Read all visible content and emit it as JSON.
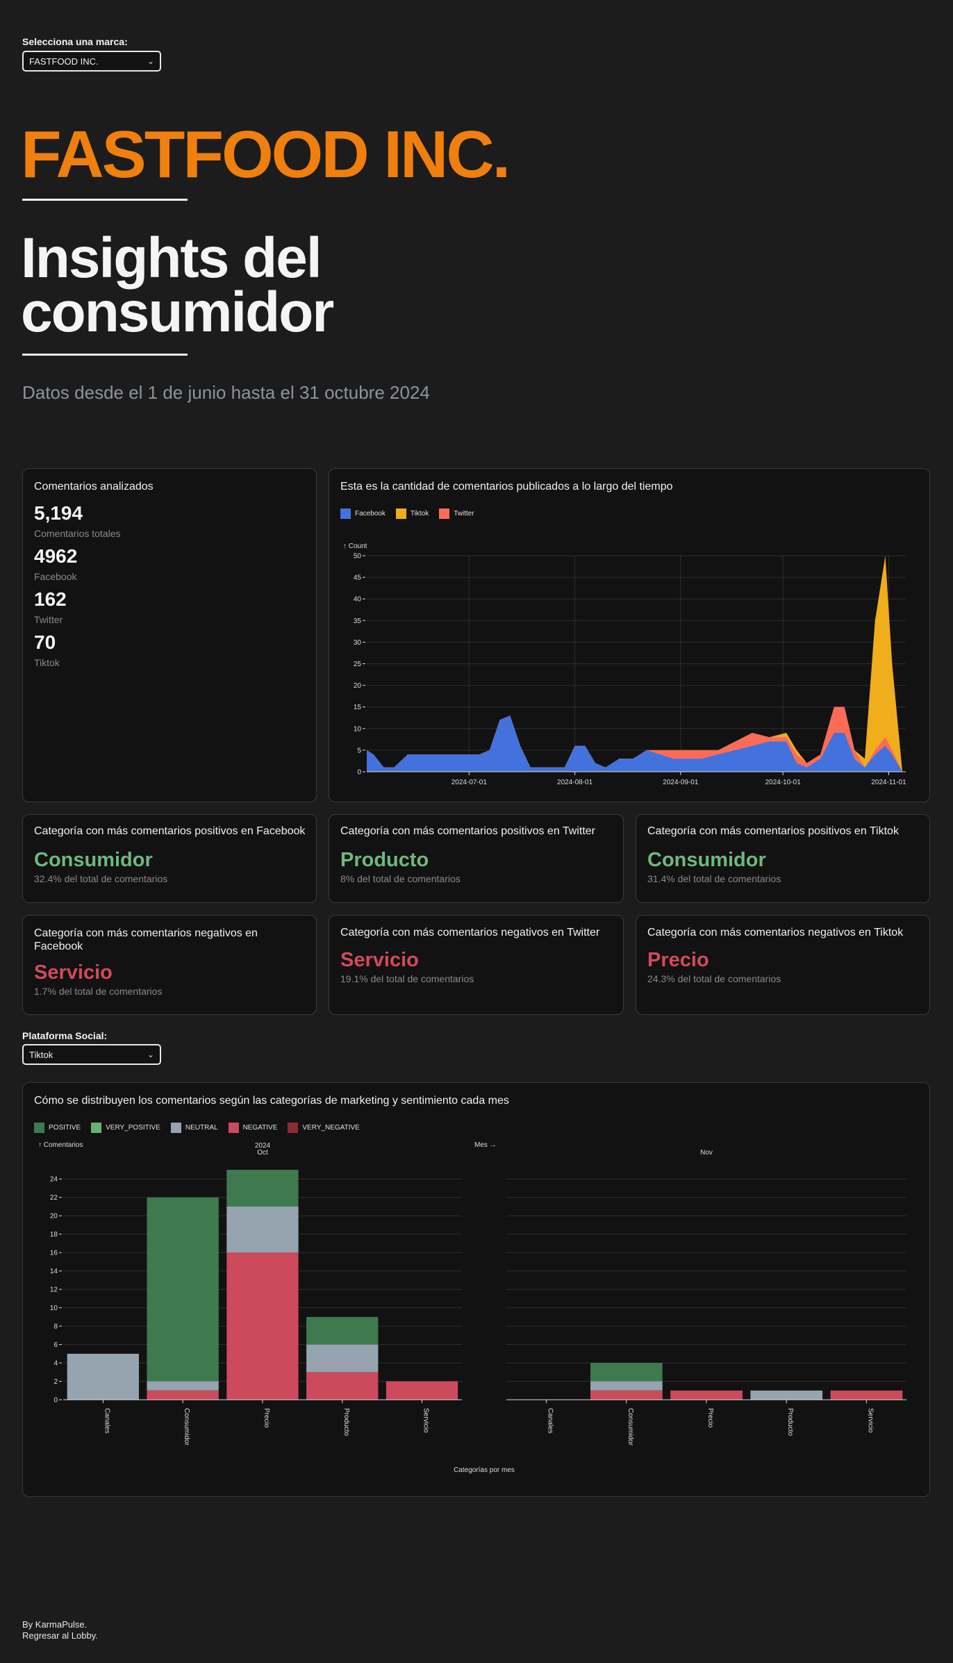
{
  "brand_selector": {
    "label": "Selecciona una marca:",
    "value": "FASTFOOD INC."
  },
  "brand": {
    "title": "FASTFOOD INC."
  },
  "header": {
    "title_line1": "Insights del",
    "title_line2": "consumidor",
    "date_range": "Datos desde el 1 de junio hasta el 31 octubre 2024"
  },
  "summary": {
    "title": "Comentarios analizados",
    "stats": [
      {
        "value": "5,194",
        "caption": "Comentarios totales"
      },
      {
        "value": "4962",
        "caption": "Facebook"
      },
      {
        "value": "162",
        "caption": "Twitter"
      },
      {
        "value": "70",
        "caption": "Tiktok"
      }
    ]
  },
  "timeline": {
    "title": "Esta es la cantidad de comentarios publicados a lo largo del tiempo",
    "legend": [
      {
        "label": "Facebook",
        "color": "#4472dc"
      },
      {
        "label": "Tiktok",
        "color": "#f0ad1c"
      },
      {
        "label": "Twitter",
        "color": "#fb6b56"
      }
    ]
  },
  "positive_cards": [
    {
      "title": "Categoría con más comentarios positivos en Facebook",
      "category": "Consumidor",
      "caption": "32.4% del total de comentarios"
    },
    {
      "title": "Categoría con más comentarios positivos en Twitter",
      "category": "Producto",
      "caption": "8% del total de comentarios"
    },
    {
      "title": "Categoría con más comentarios positivos en Tiktok",
      "category": "Consumidor",
      "caption": "31.4% del total de comentarios"
    }
  ],
  "negative_cards": [
    {
      "title": "Categoría con más comentarios negativos en Facebook",
      "category": "Servicio",
      "caption": "1.7% del total de comentarios"
    },
    {
      "title": "Categoría con más comentarios negativos en Twitter",
      "category": "Servicio",
      "caption": "19.1% del total de comentarios"
    },
    {
      "title": "Categoría con más comentarios negativos en Tiktok",
      "category": "Precio",
      "caption": "24.3% del total de comentarios"
    }
  ],
  "platform_selector": {
    "label": "Plataforma Social:",
    "value": "Tiktok"
  },
  "distribution": {
    "title": "Cómo se distribuyen los comentarios según las categorías de marketing y sentimiento cada mes",
    "legend": [
      {
        "label": "POSITIVE",
        "color": "#3f7a4f"
      },
      {
        "label": "VERY_POSITIVE",
        "color": "#66b36f"
      },
      {
        "label": "NEUTRAL",
        "color": "#95a4ae"
      },
      {
        "label": "NEGATIVE",
        "color": "#cc4a5c"
      },
      {
        "label": "VERY_NEGATIVE",
        "color": "#8b2b32"
      }
    ]
  },
  "footer": {
    "line1": "By KarmaPulse.",
    "line2": "Regresar al Lobby."
  },
  "chart_data": [
    {
      "type": "area",
      "title": "Esta es la cantidad de comentarios publicados a lo largo del tiempo",
      "ylabel": "↑ Count",
      "xlabel": "",
      "ylim": [
        0,
        50
      ],
      "y_ticks": [
        0,
        5,
        10,
        15,
        20,
        25,
        30,
        35,
        40,
        45,
        50
      ],
      "x_tick_labels": [
        "2024-07-01",
        "2024-08-01",
        "2024-09-01",
        "2024-10-01",
        "2024-11-01"
      ],
      "x_ticks": [
        "2024-07-01",
        "2024-08-01",
        "2024-09-01",
        "2024-10-01",
        "2024-11-01"
      ],
      "xlim": [
        "2024-06-01",
        "2024-11-06"
      ],
      "grid": true,
      "legend_position": "top-left",
      "stacked": true,
      "series": [
        {
          "name": "Facebook",
          "color": "#4472dc",
          "points": [
            [
              "2024-06-01",
              5
            ],
            [
              "2024-06-03",
              4
            ],
            [
              "2024-06-06",
              1
            ],
            [
              "2024-06-09",
              1
            ],
            [
              "2024-06-13",
              4
            ],
            [
              "2024-06-20",
              4
            ],
            [
              "2024-06-27",
              4
            ],
            [
              "2024-07-04",
              4
            ],
            [
              "2024-07-07",
              5
            ],
            [
              "2024-07-10",
              12
            ],
            [
              "2024-07-13",
              13
            ],
            [
              "2024-07-16",
              6
            ],
            [
              "2024-07-19",
              1
            ],
            [
              "2024-07-25",
              1
            ],
            [
              "2024-07-29",
              1
            ],
            [
              "2024-08-01",
              6
            ],
            [
              "2024-08-04",
              6
            ],
            [
              "2024-08-07",
              2
            ],
            [
              "2024-08-10",
              1
            ],
            [
              "2024-08-14",
              3
            ],
            [
              "2024-08-18",
              3
            ],
            [
              "2024-08-22",
              5
            ],
            [
              "2024-08-26",
              4
            ],
            [
              "2024-08-30",
              3
            ],
            [
              "2024-09-03",
              3
            ],
            [
              "2024-09-07",
              3
            ],
            [
              "2024-09-12",
              4
            ],
            [
              "2024-09-17",
              5
            ],
            [
              "2024-09-22",
              6
            ],
            [
              "2024-09-27",
              7
            ],
            [
              "2024-10-02",
              7
            ],
            [
              "2024-10-05",
              2
            ],
            [
              "2024-10-08",
              1
            ],
            [
              "2024-10-12",
              3
            ],
            [
              "2024-10-16",
              9
            ],
            [
              "2024-10-19",
              9
            ],
            [
              "2024-10-22",
              3
            ],
            [
              "2024-10-25",
              1
            ],
            [
              "2024-10-28",
              4
            ],
            [
              "2024-10-31",
              6
            ],
            [
              "2024-11-02",
              4
            ],
            [
              "2024-11-05",
              0
            ]
          ]
        },
        {
          "name": "Twitter",
          "color": "#fb6b56",
          "points": [
            [
              "2024-06-01",
              0
            ],
            [
              "2024-08-18",
              0
            ],
            [
              "2024-08-22",
              0
            ],
            [
              "2024-08-26",
              1
            ],
            [
              "2024-08-30",
              2
            ],
            [
              "2024-09-03",
              2
            ],
            [
              "2024-09-07",
              2
            ],
            [
              "2024-09-12",
              1
            ],
            [
              "2024-09-17",
              2
            ],
            [
              "2024-09-22",
              3
            ],
            [
              "2024-09-27",
              1
            ],
            [
              "2024-10-02",
              1
            ],
            [
              "2024-10-05",
              2
            ],
            [
              "2024-10-08",
              1
            ],
            [
              "2024-10-12",
              1
            ],
            [
              "2024-10-16",
              6
            ],
            [
              "2024-10-19",
              6
            ],
            [
              "2024-10-22",
              2
            ],
            [
              "2024-10-25",
              0
            ],
            [
              "2024-10-28",
              1
            ],
            [
              "2024-10-31",
              2
            ],
            [
              "2024-11-02",
              1
            ],
            [
              "2024-11-05",
              0
            ]
          ]
        },
        {
          "name": "Tiktok",
          "color": "#f0ad1c",
          "points": [
            [
              "2024-06-01",
              0
            ],
            [
              "2024-09-27",
              0
            ],
            [
              "2024-10-02",
              1
            ],
            [
              "2024-10-05",
              1
            ],
            [
              "2024-10-08",
              0
            ],
            [
              "2024-10-22",
              0
            ],
            [
              "2024-10-25",
              2
            ],
            [
              "2024-10-28",
              30
            ],
            [
              "2024-10-31",
              42
            ],
            [
              "2024-11-02",
              20
            ],
            [
              "2024-11-05",
              0
            ]
          ]
        }
      ]
    },
    {
      "type": "bar",
      "stacked": true,
      "facet": "Mes →",
      "title": "Cómo se distribuyen los comentarios según las categorías de marketing y sentimiento cada mes",
      "ylabel": "↑ Comentarios",
      "xlabel": "Categorías por mes",
      "ylim": [
        0,
        25
      ],
      "y_ticks": [
        0,
        2,
        4,
        6,
        8,
        10,
        12,
        14,
        16,
        18,
        20,
        22,
        24
      ],
      "grid": true,
      "legend_position": "top-left",
      "categories": [
        "Canales",
        "Consumidor",
        "Precio",
        "Producto",
        "Servicio"
      ],
      "series_names": [
        "NEGATIVE",
        "NEUTRAL",
        "POSITIVE"
      ],
      "colors": {
        "NEGATIVE": "#cc4a5c",
        "NEUTRAL": "#95a4ae",
        "POSITIVE": "#3f7a4f"
      },
      "panels": [
        {
          "header_year": "2024",
          "header_month": "Oct",
          "series": [
            {
              "name": "NEGATIVE",
              "values": [
                0,
                1,
                16,
                3,
                2
              ]
            },
            {
              "name": "NEUTRAL",
              "values": [
                5,
                1,
                5,
                3,
                0
              ]
            },
            {
              "name": "POSITIVE",
              "values": [
                0,
                20,
                4,
                3,
                0
              ]
            }
          ]
        },
        {
          "header_year": "",
          "header_month": "Nov",
          "series": [
            {
              "name": "NEGATIVE",
              "values": [
                0,
                1,
                1,
                0,
                1
              ]
            },
            {
              "name": "NEUTRAL",
              "values": [
                0,
                1,
                0,
                1,
                0
              ]
            },
            {
              "name": "POSITIVE",
              "values": [
                0,
                2,
                0,
                0,
                0
              ]
            }
          ]
        }
      ]
    }
  ]
}
